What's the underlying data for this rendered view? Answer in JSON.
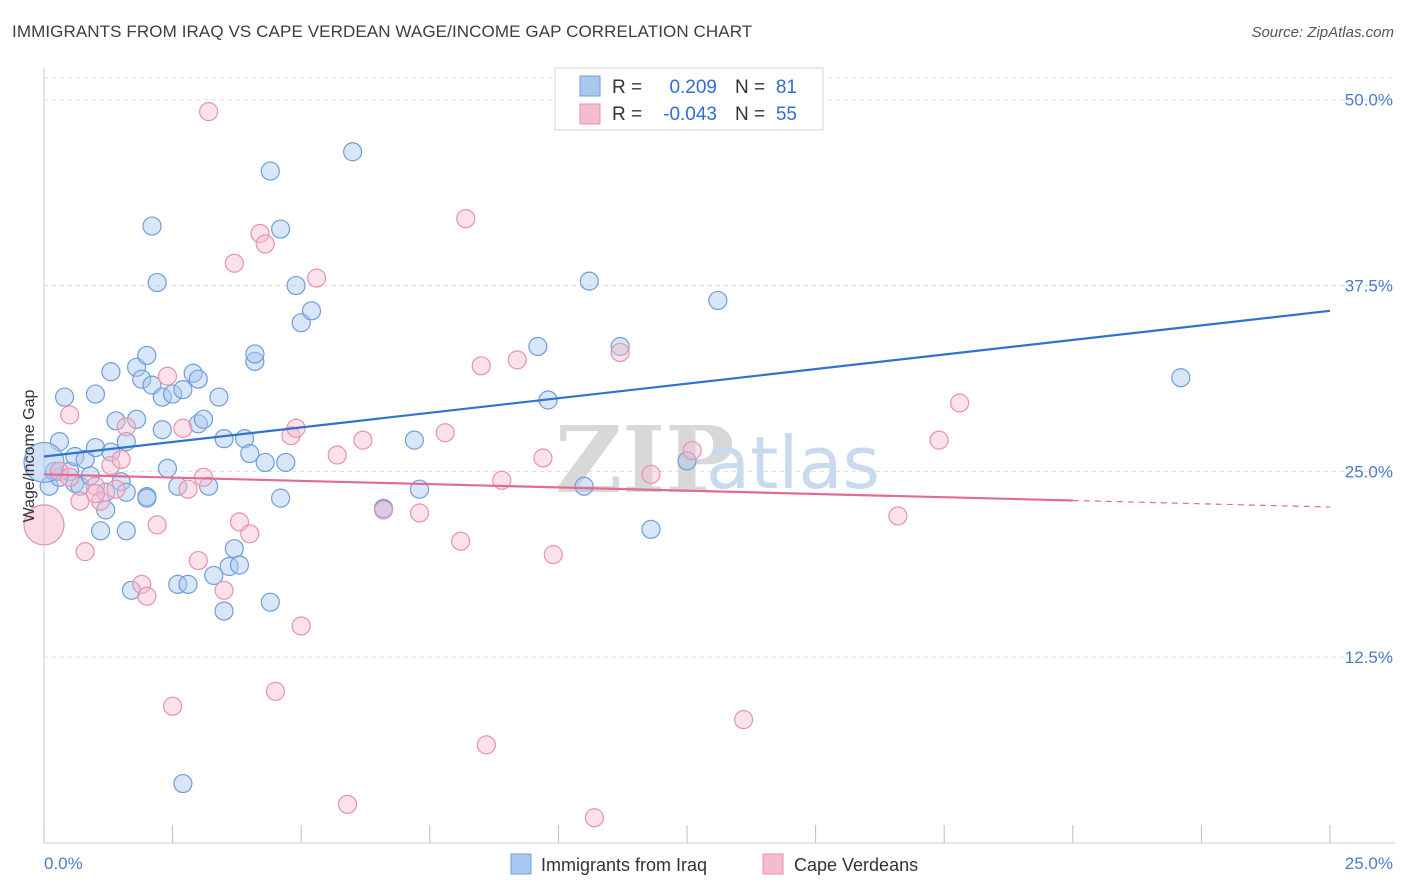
{
  "title": "IMMIGRANTS FROM IRAQ VS CAPE VERDEAN WAGE/INCOME GAP CORRELATION CHART",
  "source": "Source: ZipAtlas.com",
  "watermark": {
    "zip": "ZIP",
    "atlas": "atlas"
  },
  "legend": {
    "r_label": "R =",
    "n_label": "N =",
    "blue": {
      "r": "0.209",
      "n": "81"
    },
    "pink": {
      "r": "-0.043",
      "n": "55"
    }
  },
  "colors": {
    "blue_fill": "#a9c8ef",
    "blue_stroke": "#6e9ed8",
    "blue_line": "#2f72cf",
    "pink_fill": "#f5bcd0",
    "pink_stroke": "#e891b0",
    "pink_line": "#e06c96"
  },
  "chart_data": {
    "type": "scatter",
    "title": "IMMIGRANTS FROM IRAQ VS CAPE VERDEAN WAGE/INCOME GAP CORRELATION CHART",
    "ylabel": "Wage/Income Gap",
    "xlim": [
      0,
      25
    ],
    "ylim": [
      0,
      52
    ],
    "x_tick_labels": [
      "0.0%",
      "25.0%"
    ],
    "y_ticks": [
      12.5,
      25.0,
      37.5,
      50.0
    ],
    "y_tick_labels": [
      "12.5%",
      "25.0%",
      "37.5%",
      "50.0%"
    ],
    "series": [
      {
        "name": "Immigrants from Iraq",
        "color": "#a9c8ef",
        "trend": {
          "x": [
            0,
            25
          ],
          "y": [
            26.0,
            35.8
          ],
          "dashed_from": null
        },
        "points": [
          [
            0.1,
            24.0
          ],
          [
            0.2,
            25.0
          ],
          [
            0.3,
            24.6
          ],
          [
            0.3,
            27.0
          ],
          [
            0.4,
            30.0
          ],
          [
            0.5,
            25.0
          ],
          [
            0.6,
            24.2
          ],
          [
            0.6,
            26.0
          ],
          [
            0.7,
            24.0
          ],
          [
            0.8,
            25.8
          ],
          [
            0.9,
            24.7
          ],
          [
            1.0,
            26.6
          ],
          [
            1.0,
            30.2
          ],
          [
            1.1,
            21.0
          ],
          [
            1.2,
            23.6
          ],
          [
            1.2,
            22.4
          ],
          [
            1.3,
            26.3
          ],
          [
            1.3,
            31.7
          ],
          [
            1.4,
            28.4
          ],
          [
            1.5,
            24.3
          ],
          [
            1.6,
            23.6
          ],
          [
            1.6,
            21.0
          ],
          [
            1.6,
            27.0
          ],
          [
            1.7,
            17.0
          ],
          [
            1.8,
            28.5
          ],
          [
            1.8,
            32.0
          ],
          [
            1.9,
            31.2
          ],
          [
            2.0,
            23.3
          ],
          [
            2.0,
            32.8
          ],
          [
            2.1,
            41.5
          ],
          [
            2.1,
            30.8
          ],
          [
            2.2,
            37.7
          ],
          [
            2.3,
            30.0
          ],
          [
            2.3,
            27.8
          ],
          [
            2.4,
            25.2
          ],
          [
            2.5,
            30.2
          ],
          [
            2.6,
            17.4
          ],
          [
            2.6,
            24.0
          ],
          [
            2.7,
            30.5
          ],
          [
            2.7,
            4.0
          ],
          [
            2.8,
            17.4
          ],
          [
            2.9,
            31.6
          ],
          [
            3.0,
            31.2
          ],
          [
            3.0,
            28.2
          ],
          [
            3.1,
            28.5
          ],
          [
            3.2,
            24.0
          ],
          [
            3.3,
            18.0
          ],
          [
            3.4,
            30.0
          ],
          [
            3.5,
            15.6
          ],
          [
            3.5,
            27.2
          ],
          [
            3.6,
            18.6
          ],
          [
            3.7,
            19.8
          ],
          [
            3.8,
            18.7
          ],
          [
            3.9,
            27.2
          ],
          [
            4.0,
            26.2
          ],
          [
            4.1,
            32.4
          ],
          [
            4.1,
            32.9
          ],
          [
            4.3,
            25.6
          ],
          [
            4.4,
            16.2
          ],
          [
            4.4,
            45.2
          ],
          [
            4.6,
            23.2
          ],
          [
            4.6,
            41.3
          ],
          [
            4.7,
            25.6
          ],
          [
            4.9,
            37.5
          ],
          [
            5.0,
            35.0
          ],
          [
            5.2,
            35.8
          ],
          [
            6.0,
            46.5
          ],
          [
            6.6,
            22.5
          ],
          [
            7.2,
            27.1
          ],
          [
            7.3,
            23.8
          ],
          [
            9.6,
            33.4
          ],
          [
            9.8,
            29.8
          ],
          [
            10.5,
            24.0
          ],
          [
            10.6,
            37.8
          ],
          [
            11.2,
            33.4
          ],
          [
            11.8,
            21.1
          ],
          [
            12.5,
            25.7
          ],
          [
            13.1,
            36.5
          ],
          [
            22.1,
            31.3
          ],
          [
            6.6,
            22.5
          ],
          [
            2.0,
            23.2
          ]
        ],
        "big_points": [
          [
            0.0,
            25.6
          ]
        ]
      },
      {
        "name": "Cape Verdeans",
        "color": "#f5bcd0",
        "trend": {
          "x": [
            0,
            25
          ],
          "y": [
            24.8,
            22.6
          ],
          "dashed_from": 20.0
        },
        "points": [
          [
            0.3,
            25.0
          ],
          [
            0.5,
            24.6
          ],
          [
            0.5,
            28.8
          ],
          [
            0.7,
            23.0
          ],
          [
            0.8,
            19.6
          ],
          [
            1.0,
            24.0
          ],
          [
            1.1,
            23.0
          ],
          [
            1.3,
            25.4
          ],
          [
            1.4,
            23.8
          ],
          [
            1.5,
            25.8
          ],
          [
            1.6,
            28.0
          ],
          [
            1.9,
            17.4
          ],
          [
            2.0,
            16.6
          ],
          [
            2.2,
            21.4
          ],
          [
            2.4,
            31.4
          ],
          [
            2.5,
            9.2
          ],
          [
            2.7,
            27.9
          ],
          [
            2.8,
            23.8
          ],
          [
            3.0,
            19.0
          ],
          [
            3.1,
            24.6
          ],
          [
            3.2,
            49.2
          ],
          [
            3.5,
            17.0
          ],
          [
            3.7,
            39.0
          ],
          [
            3.8,
            21.6
          ],
          [
            4.0,
            20.8
          ],
          [
            4.2,
            41.0
          ],
          [
            4.3,
            40.3
          ],
          [
            4.5,
            10.2
          ],
          [
            4.8,
            27.4
          ],
          [
            4.9,
            27.9
          ],
          [
            5.0,
            14.6
          ],
          [
            5.3,
            38.0
          ],
          [
            5.7,
            26.1
          ],
          [
            5.9,
            2.6
          ],
          [
            6.2,
            27.1
          ],
          [
            6.6,
            22.4
          ],
          [
            7.3,
            22.2
          ],
          [
            7.8,
            27.6
          ],
          [
            8.1,
            20.3
          ],
          [
            8.2,
            42.0
          ],
          [
            8.5,
            32.1
          ],
          [
            8.6,
            6.6
          ],
          [
            8.9,
            24.4
          ],
          [
            9.2,
            32.5
          ],
          [
            9.7,
            25.9
          ],
          [
            9.9,
            19.4
          ],
          [
            10.7,
            1.7
          ],
          [
            11.2,
            33.0
          ],
          [
            11.8,
            24.8
          ],
          [
            12.6,
            26.4
          ],
          [
            13.6,
            8.3
          ],
          [
            16.6,
            22.0
          ],
          [
            17.4,
            27.1
          ],
          [
            17.8,
            29.6
          ],
          [
            1.0,
            23.5
          ]
        ],
        "big_points": [
          [
            0.0,
            21.4
          ]
        ]
      }
    ]
  },
  "bottom_legend": {
    "blue": "Immigrants from Iraq",
    "pink": "Cape Verdeans"
  }
}
